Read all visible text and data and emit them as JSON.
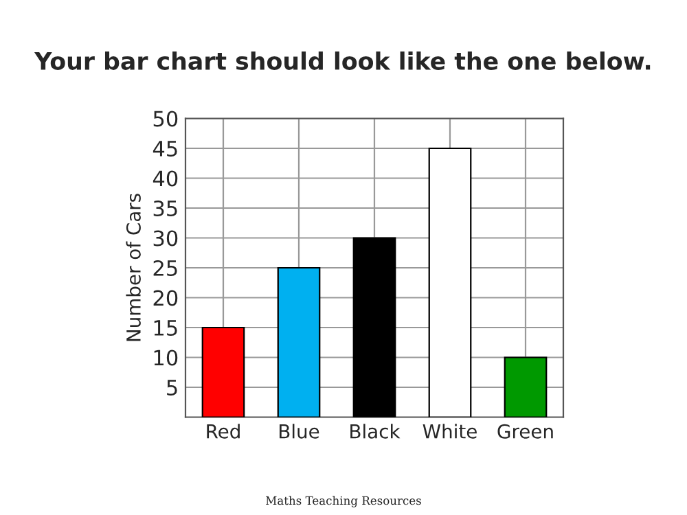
{
  "chart_data": {
    "type": "bar",
    "title": "Your bar chart should look like the one below.",
    "ylabel": "Number of Cars",
    "categories": [
      "Red",
      "Blue",
      "Black",
      "White",
      "Green"
    ],
    "values": [
      15,
      25,
      30,
      45,
      10
    ],
    "colors": [
      "#ff0000",
      "#00b0f0",
      "#000000",
      "#ffffff",
      "#009900"
    ],
    "ylim": [
      0,
      50
    ],
    "yticks": [
      5,
      10,
      15,
      20,
      25,
      30,
      35,
      40,
      45,
      50
    ],
    "grid": true,
    "annotations": [
      "Maths Teaching Resources"
    ]
  }
}
